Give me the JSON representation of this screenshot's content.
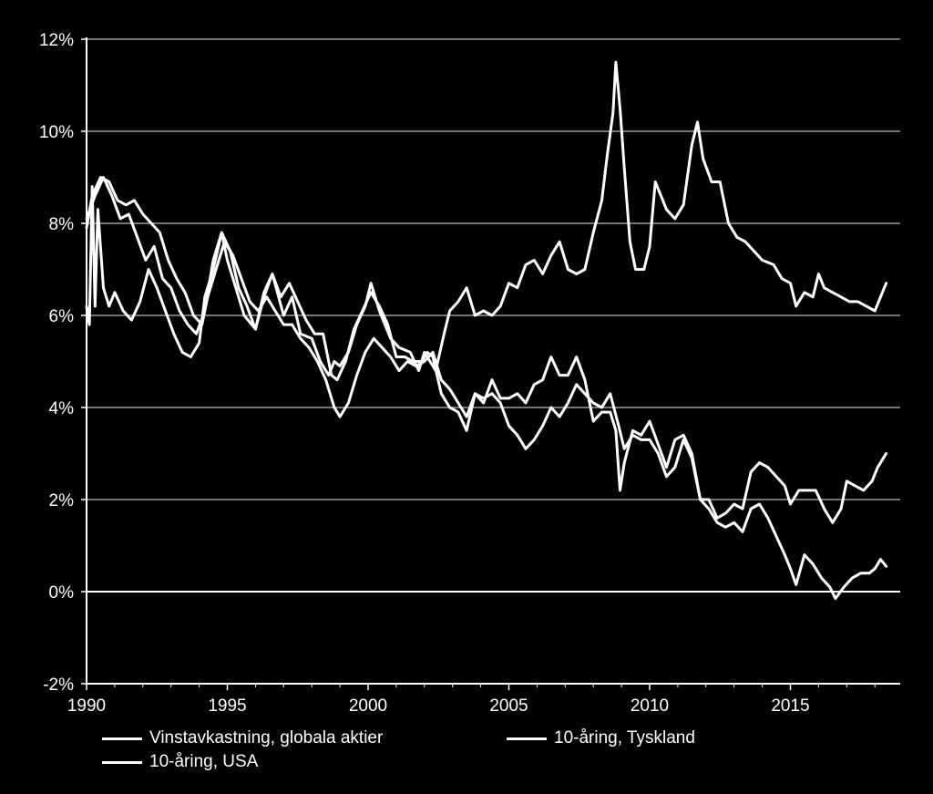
{
  "chart_data": {
    "type": "line",
    "title": "",
    "xlabel": "",
    "ylabel": "",
    "xlim": [
      1990,
      2018.9
    ],
    "ylim": [
      -2,
      12
    ],
    "x_ticks": [
      1990,
      1995,
      2000,
      2005,
      2010,
      2015
    ],
    "x_tick_labels": [
      "1990",
      "1995",
      "2000",
      "2005",
      "2010",
      "2015"
    ],
    "y_ticks": [
      -2,
      0,
      2,
      4,
      6,
      8,
      10,
      12
    ],
    "y_tick_labels": [
      "-2%",
      "0%",
      "2%",
      "4%",
      "6%",
      "8%",
      "10%",
      "12%"
    ],
    "grid": "horizontal",
    "legend_position": "bottom",
    "line_color": "#ffffff",
    "grid_color": "#9a9a9a",
    "background": "#000000",
    "series": [
      {
        "name": "Vinstavkastning, globala aktier",
        "points": [
          [
            1990.0,
            6.2
          ],
          [
            1990.1,
            5.8
          ],
          [
            1990.2,
            8.8
          ],
          [
            1990.3,
            6.2
          ],
          [
            1990.4,
            8.3
          ],
          [
            1990.6,
            6.6
          ],
          [
            1990.8,
            6.2
          ],
          [
            1991.0,
            6.5
          ],
          [
            1991.3,
            6.1
          ],
          [
            1991.6,
            5.9
          ],
          [
            1991.9,
            6.3
          ],
          [
            1992.2,
            7.0
          ],
          [
            1992.5,
            6.6
          ],
          [
            1992.8,
            6.1
          ],
          [
            1993.1,
            5.6
          ],
          [
            1993.4,
            5.2
          ],
          [
            1993.7,
            5.1
          ],
          [
            1994.0,
            5.4
          ],
          [
            1994.2,
            6.4
          ],
          [
            1994.5,
            7.0
          ],
          [
            1994.8,
            7.8
          ],
          [
            1995.0,
            7.2
          ],
          [
            1995.3,
            6.6
          ],
          [
            1995.6,
            6.0
          ],
          [
            1996.0,
            5.7
          ],
          [
            1996.3,
            6.5
          ],
          [
            1996.6,
            6.9
          ],
          [
            1997.0,
            6.0
          ],
          [
            1997.3,
            6.4
          ],
          [
            1997.6,
            5.6
          ],
          [
            1998.0,
            5.5
          ],
          [
            1998.3,
            5.0
          ],
          [
            1998.6,
            4.7
          ],
          [
            1998.8,
            5.0
          ],
          [
            1999.0,
            4.9
          ],
          [
            1999.3,
            5.2
          ],
          [
            1999.6,
            5.8
          ],
          [
            1999.9,
            6.2
          ],
          [
            2000.1,
            6.7
          ],
          [
            2000.4,
            6.1
          ],
          [
            2000.8,
            5.5
          ],
          [
            2001.1,
            5.3
          ],
          [
            2001.5,
            5.2
          ],
          [
            2001.8,
            4.8
          ],
          [
            2002.0,
            5.2
          ],
          [
            2002.4,
            4.8
          ],
          [
            2002.7,
            5.6
          ],
          [
            2002.9,
            6.1
          ],
          [
            2003.2,
            6.3
          ],
          [
            2003.5,
            6.6
          ],
          [
            2003.8,
            6.0
          ],
          [
            2004.1,
            6.1
          ],
          [
            2004.4,
            6.0
          ],
          [
            2004.7,
            6.2
          ],
          [
            2005.0,
            6.7
          ],
          [
            2005.3,
            6.6
          ],
          [
            2005.6,
            7.1
          ],
          [
            2005.9,
            7.2
          ],
          [
            2006.2,
            6.9
          ],
          [
            2006.5,
            7.3
          ],
          [
            2006.8,
            7.6
          ],
          [
            2007.1,
            7.0
          ],
          [
            2007.4,
            6.9
          ],
          [
            2007.7,
            7.0
          ],
          [
            2008.0,
            7.8
          ],
          [
            2008.3,
            8.5
          ],
          [
            2008.5,
            9.5
          ],
          [
            2008.7,
            10.4
          ],
          [
            2008.8,
            11.5
          ],
          [
            2008.95,
            10.5
          ],
          [
            2009.1,
            9.2
          ],
          [
            2009.3,
            7.6
          ],
          [
            2009.5,
            7.0
          ],
          [
            2009.8,
            7.0
          ],
          [
            2010.0,
            7.5
          ],
          [
            2010.2,
            8.9
          ],
          [
            2010.4,
            8.6
          ],
          [
            2010.6,
            8.3
          ],
          [
            2010.9,
            8.1
          ],
          [
            2011.2,
            8.4
          ],
          [
            2011.5,
            9.7
          ],
          [
            2011.7,
            10.2
          ],
          [
            2011.9,
            9.4
          ],
          [
            2012.2,
            8.9
          ],
          [
            2012.5,
            8.9
          ],
          [
            2012.8,
            8.0
          ],
          [
            2013.1,
            7.7
          ],
          [
            2013.4,
            7.6
          ],
          [
            2013.7,
            7.4
          ],
          [
            2014.0,
            7.2
          ],
          [
            2014.4,
            7.1
          ],
          [
            2014.7,
            6.8
          ],
          [
            2015.0,
            6.7
          ],
          [
            2015.2,
            6.2
          ],
          [
            2015.5,
            6.5
          ],
          [
            2015.8,
            6.4
          ],
          [
            2016.0,
            6.9
          ],
          [
            2016.2,
            6.6
          ],
          [
            2016.5,
            6.5
          ],
          [
            2016.8,
            6.4
          ],
          [
            2017.1,
            6.3
          ],
          [
            2017.4,
            6.3
          ],
          [
            2017.7,
            6.2
          ],
          [
            2018.0,
            6.1
          ],
          [
            2018.2,
            6.4
          ],
          [
            2018.4,
            6.7
          ]
        ]
      },
      {
        "name": "10-åring, Tyskland",
        "points": [
          [
            1990.0,
            7.9
          ],
          [
            1990.2,
            8.6
          ],
          [
            1990.5,
            9.0
          ],
          [
            1990.8,
            8.9
          ],
          [
            1991.1,
            8.5
          ],
          [
            1991.4,
            8.4
          ],
          [
            1991.7,
            8.5
          ],
          [
            1992.0,
            8.2
          ],
          [
            1992.3,
            8.0
          ],
          [
            1992.6,
            7.8
          ],
          [
            1992.9,
            7.2
          ],
          [
            1993.2,
            6.8
          ],
          [
            1993.5,
            6.5
          ],
          [
            1993.8,
            6.0
          ],
          [
            1994.1,
            5.8
          ],
          [
            1994.3,
            6.4
          ],
          [
            1994.6,
            7.0
          ],
          [
            1994.9,
            7.6
          ],
          [
            1995.2,
            7.3
          ],
          [
            1995.5,
            6.8
          ],
          [
            1995.8,
            6.3
          ],
          [
            1996.1,
            6.1
          ],
          [
            1996.4,
            6.4
          ],
          [
            1996.7,
            6.1
          ],
          [
            1997.0,
            5.8
          ],
          [
            1997.3,
            5.8
          ],
          [
            1997.6,
            5.5
          ],
          [
            1997.9,
            5.3
          ],
          [
            1998.2,
            5.0
          ],
          [
            1998.5,
            4.6
          ],
          [
            1998.8,
            4.0
          ],
          [
            1999.0,
            3.8
          ],
          [
            1999.3,
            4.1
          ],
          [
            1999.6,
            4.7
          ],
          [
            1999.9,
            5.2
          ],
          [
            2000.2,
            5.5
          ],
          [
            2000.5,
            5.3
          ],
          [
            2000.8,
            5.1
          ],
          [
            2001.1,
            4.8
          ],
          [
            2001.4,
            5.0
          ],
          [
            2001.7,
            4.9
          ],
          [
            2002.0,
            5.0
          ],
          [
            2002.3,
            5.2
          ],
          [
            2002.6,
            4.6
          ],
          [
            2002.9,
            4.4
          ],
          [
            2003.2,
            4.1
          ],
          [
            2003.5,
            3.8
          ],
          [
            2003.8,
            4.3
          ],
          [
            2004.1,
            4.2
          ],
          [
            2004.4,
            4.3
          ],
          [
            2004.7,
            4.1
          ],
          [
            2005.0,
            3.6
          ],
          [
            2005.3,
            3.4
          ],
          [
            2005.6,
            3.1
          ],
          [
            2005.9,
            3.3
          ],
          [
            2006.2,
            3.6
          ],
          [
            2006.5,
            4.0
          ],
          [
            2006.8,
            3.8
          ],
          [
            2007.1,
            4.1
          ],
          [
            2007.4,
            4.5
          ],
          [
            2007.7,
            4.3
          ],
          [
            2008.0,
            4.1
          ],
          [
            2008.3,
            4.0
          ],
          [
            2008.6,
            4.3
          ],
          [
            2008.9,
            3.6
          ],
          [
            2009.1,
            3.1
          ],
          [
            2009.4,
            3.4
          ],
          [
            2009.7,
            3.3
          ],
          [
            2010.0,
            3.3
          ],
          [
            2010.3,
            3.0
          ],
          [
            2010.6,
            2.5
          ],
          [
            2010.9,
            2.7
          ],
          [
            2011.2,
            3.3
          ],
          [
            2011.5,
            2.9
          ],
          [
            2011.8,
            2.0
          ],
          [
            2012.1,
            1.8
          ],
          [
            2012.4,
            1.5
          ],
          [
            2012.7,
            1.4
          ],
          [
            2013.0,
            1.5
          ],
          [
            2013.3,
            1.3
          ],
          [
            2013.6,
            1.8
          ],
          [
            2013.9,
            1.9
          ],
          [
            2014.2,
            1.6
          ],
          [
            2014.5,
            1.2
          ],
          [
            2014.8,
            0.8
          ],
          [
            2015.0,
            0.5
          ],
          [
            2015.2,
            0.15
          ],
          [
            2015.5,
            0.8
          ],
          [
            2015.8,
            0.6
          ],
          [
            2016.1,
            0.3
          ],
          [
            2016.4,
            0.1
          ],
          [
            2016.6,
            -0.15
          ],
          [
            2016.9,
            0.1
          ],
          [
            2017.2,
            0.3
          ],
          [
            2017.5,
            0.4
          ],
          [
            2017.8,
            0.4
          ],
          [
            2018.0,
            0.5
          ],
          [
            2018.2,
            0.7
          ],
          [
            2018.4,
            0.55
          ]
        ]
      },
      {
        "name": "10-åring, USA",
        "points": [
          [
            1990.0,
            8.1
          ],
          [
            1990.3,
            8.6
          ],
          [
            1990.6,
            9.0
          ],
          [
            1990.9,
            8.6
          ],
          [
            1991.2,
            8.1
          ],
          [
            1991.5,
            8.2
          ],
          [
            1991.8,
            7.7
          ],
          [
            1992.1,
            7.2
          ],
          [
            1992.4,
            7.5
          ],
          [
            1992.7,
            6.8
          ],
          [
            1993.0,
            6.6
          ],
          [
            1993.3,
            6.1
          ],
          [
            1993.6,
            5.8
          ],
          [
            1993.9,
            5.6
          ],
          [
            1994.2,
            6.1
          ],
          [
            1994.5,
            7.2
          ],
          [
            1994.8,
            7.8
          ],
          [
            1995.1,
            7.4
          ],
          [
            1995.4,
            6.6
          ],
          [
            1995.7,
            6.2
          ],
          [
            1996.0,
            5.7
          ],
          [
            1996.3,
            6.4
          ],
          [
            1996.6,
            6.9
          ],
          [
            1996.9,
            6.4
          ],
          [
            1997.2,
            6.7
          ],
          [
            1997.5,
            6.3
          ],
          [
            1997.8,
            5.9
          ],
          [
            1998.1,
            5.6
          ],
          [
            1998.4,
            5.6
          ],
          [
            1998.7,
            4.7
          ],
          [
            1998.9,
            4.6
          ],
          [
            1999.2,
            5.0
          ],
          [
            1999.5,
            5.7
          ],
          [
            1999.8,
            6.1
          ],
          [
            2000.1,
            6.5
          ],
          [
            2000.4,
            6.2
          ],
          [
            2000.7,
            5.8
          ],
          [
            2001.0,
            5.1
          ],
          [
            2001.3,
            5.1
          ],
          [
            2001.6,
            5.0
          ],
          [
            2001.9,
            5.0
          ],
          [
            2002.1,
            5.2
          ],
          [
            2002.3,
            5.1
          ],
          [
            2002.6,
            4.3
          ],
          [
            2002.9,
            4.0
          ],
          [
            2003.2,
            3.9
          ],
          [
            2003.5,
            3.5
          ],
          [
            2003.8,
            4.3
          ],
          [
            2004.1,
            4.1
          ],
          [
            2004.4,
            4.6
          ],
          [
            2004.7,
            4.2
          ],
          [
            2005.0,
            4.2
          ],
          [
            2005.3,
            4.3
          ],
          [
            2005.6,
            4.1
          ],
          [
            2005.9,
            4.5
          ],
          [
            2006.2,
            4.6
          ],
          [
            2006.5,
            5.1
          ],
          [
            2006.8,
            4.7
          ],
          [
            2007.1,
            4.7
          ],
          [
            2007.4,
            5.1
          ],
          [
            2007.7,
            4.6
          ],
          [
            2008.0,
            3.7
          ],
          [
            2008.3,
            3.9
          ],
          [
            2008.6,
            3.9
          ],
          [
            2008.8,
            3.5
          ],
          [
            2008.95,
            2.2
          ],
          [
            2009.1,
            2.8
          ],
          [
            2009.4,
            3.5
          ],
          [
            2009.7,
            3.4
          ],
          [
            2010.0,
            3.7
          ],
          [
            2010.3,
            3.2
          ],
          [
            2010.6,
            2.7
          ],
          [
            2010.9,
            3.3
          ],
          [
            2011.2,
            3.4
          ],
          [
            2011.5,
            3.0
          ],
          [
            2011.8,
            2.0
          ],
          [
            2012.1,
            2.0
          ],
          [
            2012.4,
            1.6
          ],
          [
            2012.7,
            1.7
          ],
          [
            2013.0,
            1.9
          ],
          [
            2013.3,
            1.8
          ],
          [
            2013.6,
            2.6
          ],
          [
            2013.9,
            2.8
          ],
          [
            2014.2,
            2.7
          ],
          [
            2014.5,
            2.5
          ],
          [
            2014.8,
            2.3
          ],
          [
            2015.0,
            1.9
          ],
          [
            2015.3,
            2.2
          ],
          [
            2015.6,
            2.2
          ],
          [
            2015.9,
            2.2
          ],
          [
            2016.2,
            1.8
          ],
          [
            2016.5,
            1.5
          ],
          [
            2016.8,
            1.8
          ],
          [
            2017.0,
            2.4
          ],
          [
            2017.3,
            2.3
          ],
          [
            2017.6,
            2.2
          ],
          [
            2017.9,
            2.4
          ],
          [
            2018.1,
            2.7
          ],
          [
            2018.3,
            2.9
          ],
          [
            2018.4,
            3.0
          ]
        ]
      }
    ]
  },
  "legend": {
    "item1": "Vinstavkastning, globala aktier",
    "item2": "10-åring, Tyskland",
    "item3": "10-åring, USA"
  }
}
